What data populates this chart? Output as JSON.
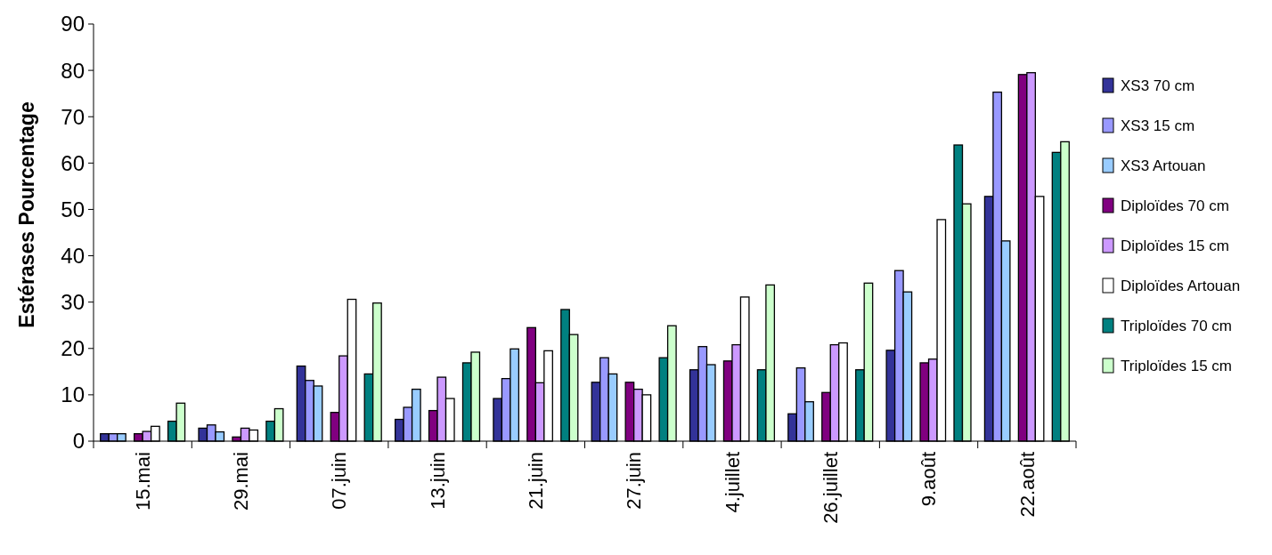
{
  "chart_data": {
    "type": "bar",
    "ylabel": "Estérases Pourcentage",
    "categories": [
      "15.mai",
      "29.mai",
      "07.juin",
      "13.juin",
      "21.juin",
      "27.juin",
      "4.juillet",
      "26.juillet",
      "9.août",
      "22.août"
    ],
    "series": [
      {
        "name": "XS3 70 cm",
        "color": "#333399",
        "values": [
          1.6,
          2.8,
          16.2,
          4.7,
          9.2,
          12.7,
          15.4,
          5.9,
          19.6,
          52.8
        ]
      },
      {
        "name": "XS3 15 cm",
        "color": "#9999ff",
        "values": [
          1.6,
          3.5,
          13.1,
          7.3,
          13.5,
          18.0,
          20.4,
          15.8,
          36.8,
          75.3
        ]
      },
      {
        "name": "XS3 Artouan",
        "color": "#99ccff",
        "values": [
          1.6,
          2.0,
          11.9,
          11.2,
          19.9,
          14.5,
          16.5,
          8.5,
          32.2,
          43.2
        ]
      },
      {
        "name": "Diploïdes 70 cm",
        "color": "#800080",
        "values": [
          1.6,
          0.9,
          6.2,
          6.6,
          24.5,
          12.7,
          17.3,
          10.5,
          16.9,
          79.1
        ]
      },
      {
        "name": "Diploïdes 15 cm",
        "color": "#cc99ff",
        "values": [
          2.1,
          2.8,
          18.4,
          13.8,
          12.6,
          11.2,
          20.8,
          20.8,
          17.7,
          79.5
        ]
      },
      {
        "name": "Diploïdes Artouan",
        "color": "#ffffff",
        "values": [
          3.2,
          2.4,
          30.6,
          9.2,
          19.5,
          10.0,
          31.1,
          21.2,
          47.8,
          52.8
        ]
      },
      {
        "name": "Triploïdes 70 cm",
        "color": "#008080",
        "values": [
          4.3,
          4.3,
          14.5,
          16.9,
          28.4,
          18.0,
          15.4,
          15.4,
          63.9,
          62.3
        ]
      },
      {
        "name": "Triploïdes 15 cm",
        "color": "#ccffcc",
        "values": [
          8.2,
          7.0,
          29.8,
          19.2,
          23.0,
          24.9,
          33.7,
          34.1,
          51.2,
          64.6
        ]
      }
    ],
    "ylim": [
      0,
      90
    ],
    "yticks": [
      0,
      10,
      20,
      30,
      40,
      50,
      60,
      70,
      80,
      90
    ],
    "grid": false,
    "legend": "right"
  }
}
